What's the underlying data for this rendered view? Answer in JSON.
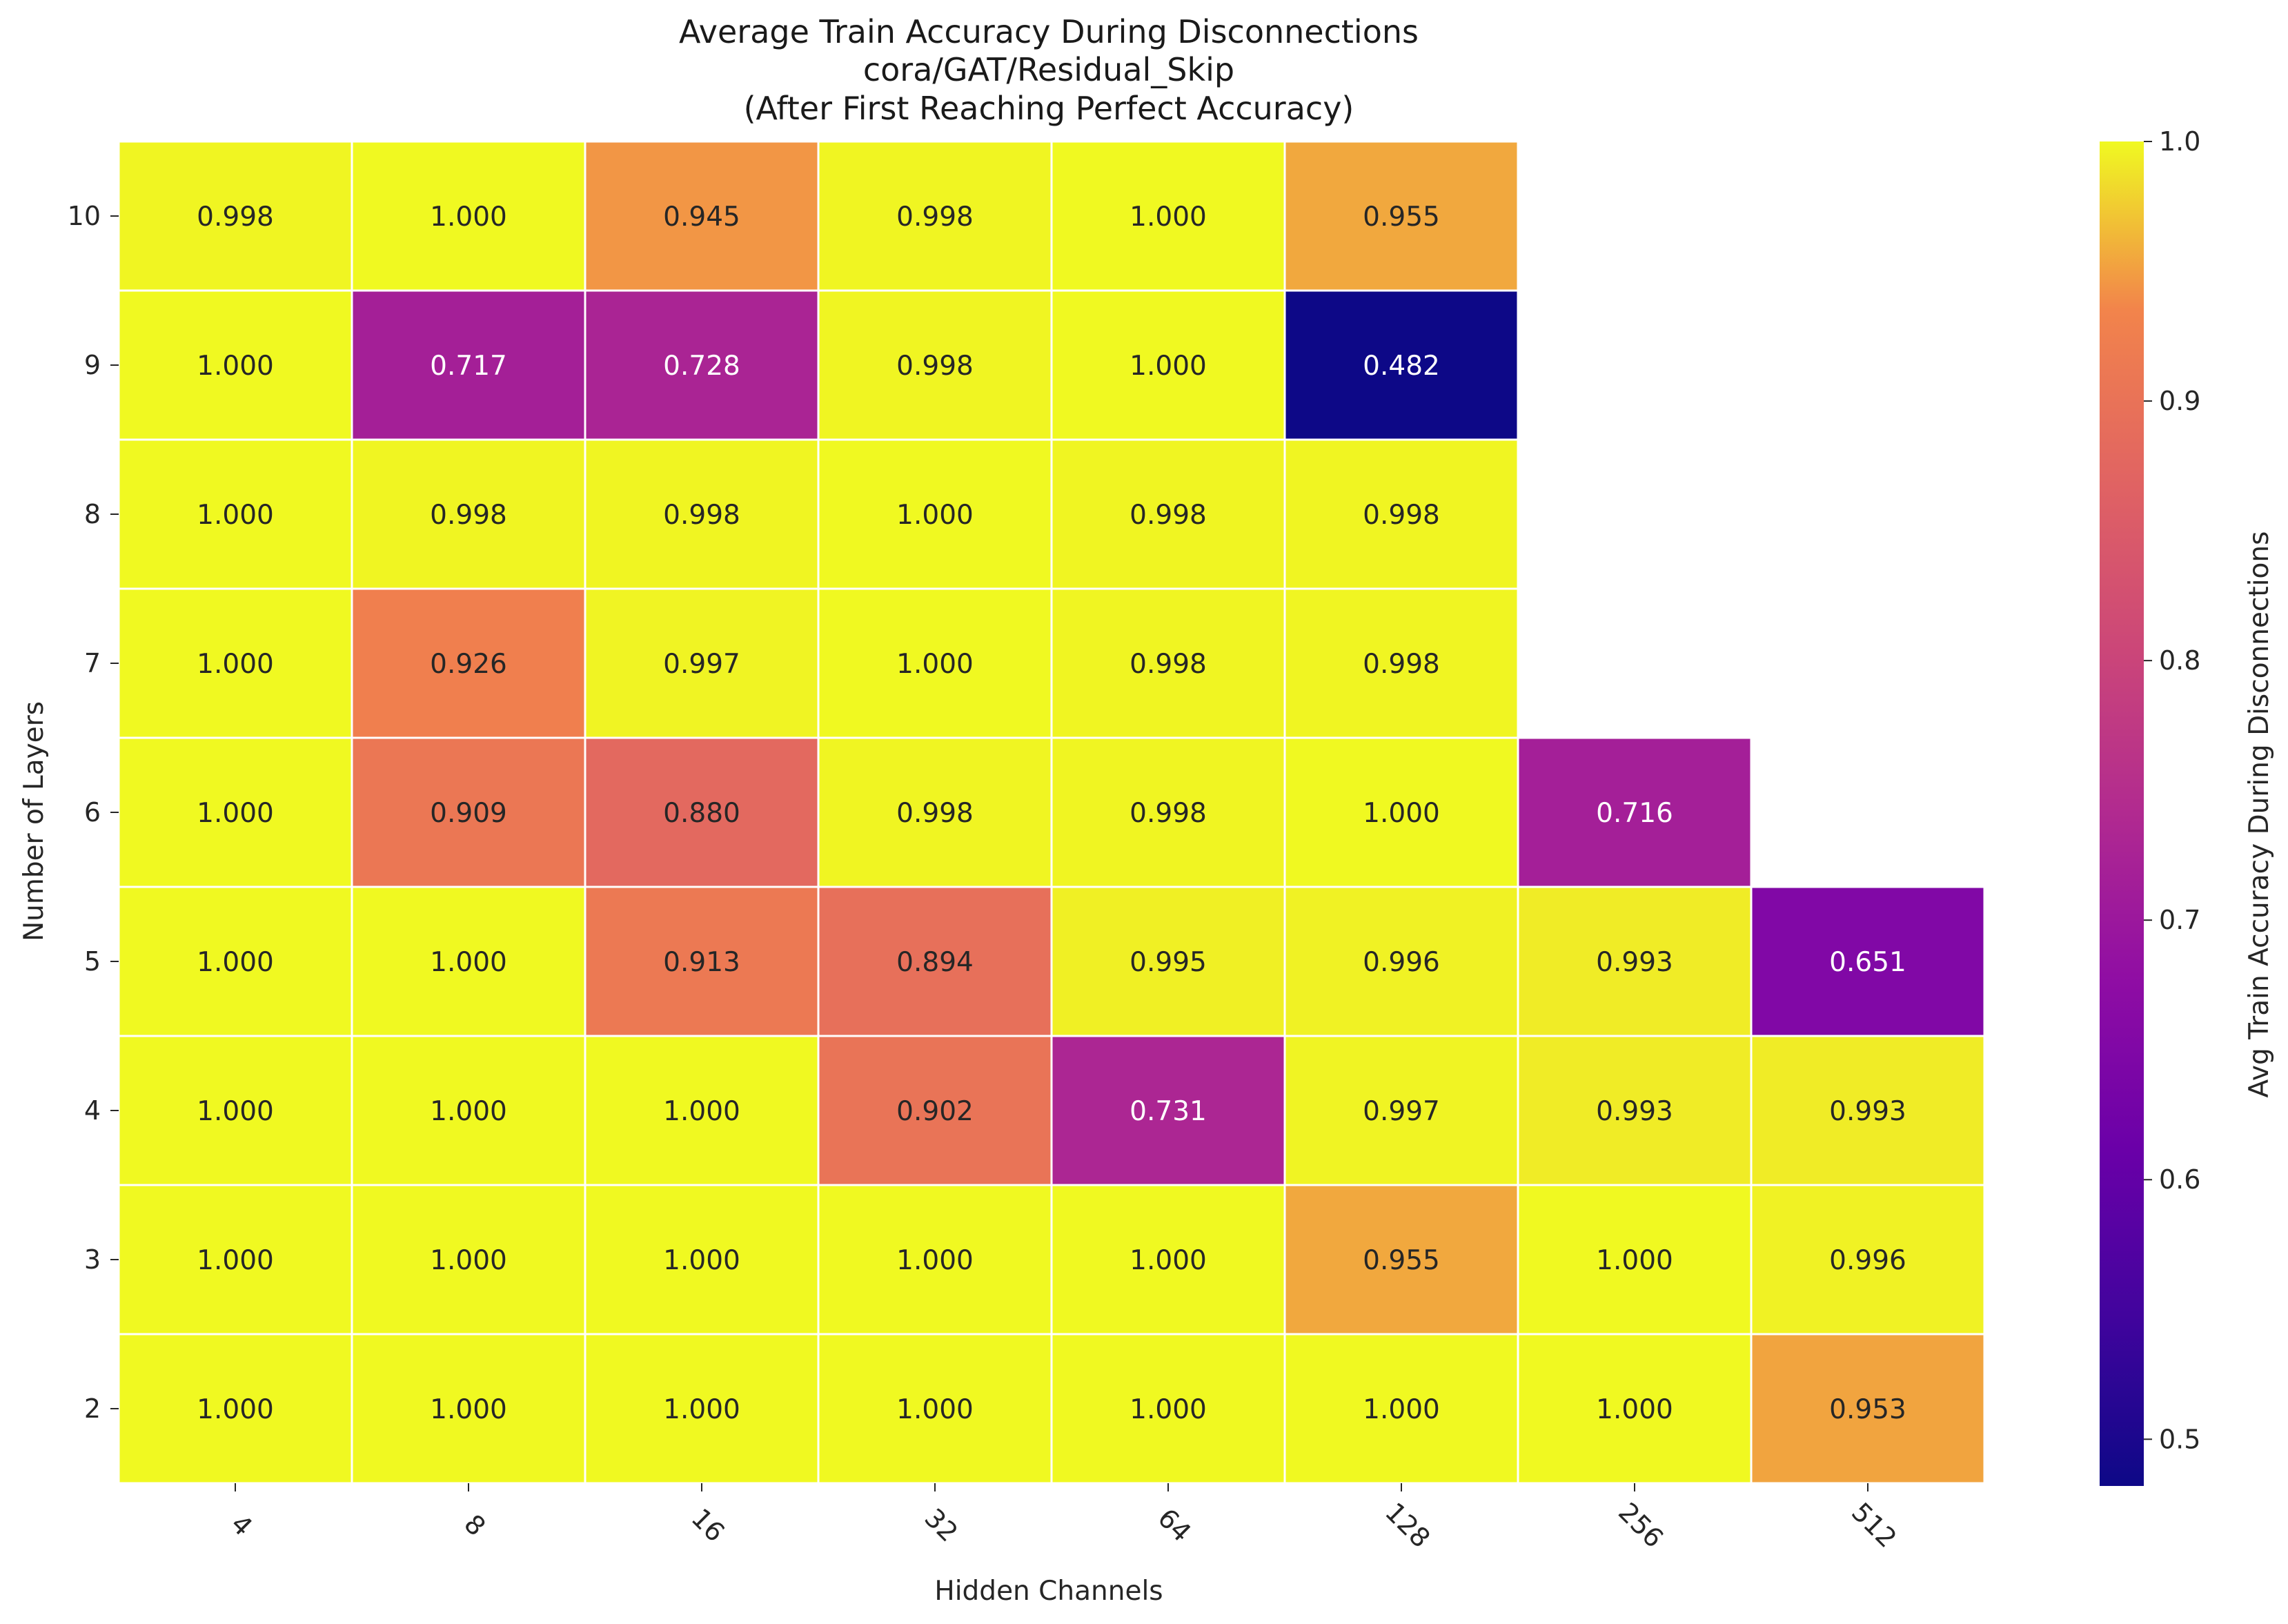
{
  "chart_data": {
    "type": "heatmap",
    "title": [
      "Average Train Accuracy During Disconnections",
      "cora/GAT/Residual_Skip",
      "(After First Reaching Perfect Accuracy)"
    ],
    "xlabel": "Hidden Channels",
    "ylabel": "Number of Layers",
    "x_categories": [
      "4",
      "8",
      "16",
      "32",
      "64",
      "128",
      "256",
      "512"
    ],
    "y_categories": [
      "10",
      "9",
      "8",
      "7",
      "6",
      "5",
      "4",
      "3",
      "2"
    ],
    "values": [
      [
        0.998,
        1.0,
        0.945,
        0.998,
        1.0,
        0.955,
        null,
        null
      ],
      [
        1.0,
        0.717,
        0.728,
        0.998,
        1.0,
        0.482,
        null,
        null
      ],
      [
        1.0,
        0.998,
        0.998,
        1.0,
        0.998,
        0.998,
        null,
        null
      ],
      [
        1.0,
        0.926,
        0.997,
        1.0,
        0.998,
        0.998,
        null,
        null
      ],
      [
        1.0,
        0.909,
        0.88,
        0.998,
        0.998,
        1.0,
        0.716,
        null
      ],
      [
        1.0,
        1.0,
        0.913,
        0.894,
        0.995,
        0.996,
        0.993,
        0.651
      ],
      [
        1.0,
        1.0,
        1.0,
        0.902,
        0.731,
        0.997,
        0.993,
        0.993
      ],
      [
        1.0,
        1.0,
        1.0,
        1.0,
        1.0,
        0.955,
        1.0,
        0.996
      ],
      [
        1.0,
        1.0,
        1.0,
        1.0,
        1.0,
        1.0,
        1.0,
        0.953
      ]
    ],
    "value_format": "3 decimals",
    "colormap": "plasma",
    "colorbar": {
      "label": "Avg Train Accuracy During Disconnections",
      "range": [
        0.482,
        1.0
      ],
      "ticks": [
        "0.5",
        "0.6",
        "0.7",
        "0.8",
        "0.9",
        "1.0"
      ],
      "tick_values": [
        0.5,
        0.6,
        0.7,
        0.8,
        0.9,
        1.0
      ]
    },
    "grid": "white cell borders",
    "x_tick_rotation": "45 degrees"
  }
}
